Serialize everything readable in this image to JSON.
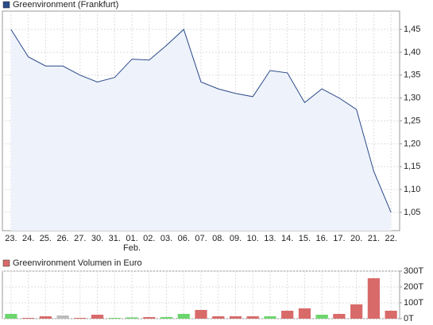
{
  "chart_data": [
    {
      "type": "area",
      "grid": true,
      "categories": [
        "23.",
        "24.",
        "25.",
        "26.",
        "27.",
        "30.",
        "31.",
        "01.",
        "02.",
        "03.",
        "06.",
        "07.",
        "08.",
        "09.",
        "10.",
        "13.",
        "14.",
        "15.",
        "16.",
        "17.",
        "20.",
        "21.",
        "22."
      ],
      "category_sublabels": [
        null,
        null,
        null,
        null,
        null,
        null,
        null,
        "Feb.",
        null,
        null,
        null,
        null,
        null,
        null,
        null,
        null,
        null,
        null,
        null,
        null,
        null,
        null,
        null
      ],
      "series": [
        {
          "name": "Greenvironment (Frankfurt)",
          "color": "#2b4a8a",
          "fill": "#eef2fa",
          "values": [
            1.45,
            1.39,
            1.37,
            1.37,
            1.35,
            1.335,
            1.345,
            1.385,
            1.383,
            1.415,
            1.45,
            1.335,
            1.32,
            1.31,
            1.303,
            1.36,
            1.355,
            1.29,
            1.32,
            1.3,
            1.275,
            1.14,
            1.05
          ]
        }
      ],
      "ylim": [
        1.01,
        1.49
      ],
      "yticks": [
        {
          "value": 1.05,
          "label": "1,05"
        },
        {
          "value": 1.1,
          "label": "1,10"
        },
        {
          "value": 1.15,
          "label": "1,15"
        },
        {
          "value": 1.2,
          "label": "1,20"
        },
        {
          "value": 1.25,
          "label": "1,25"
        },
        {
          "value": 1.3,
          "label": "1,30"
        },
        {
          "value": 1.35,
          "label": "1,35"
        },
        {
          "value": 1.4,
          "label": "1,40"
        },
        {
          "value": 1.45,
          "label": "1,45"
        }
      ]
    },
    {
      "type": "bar",
      "grid": true,
      "series": [
        {
          "name": "Greenvironment Volumen in Euro",
          "color": "#d96a6a",
          "values": [
            30,
            5,
            15,
            20,
            5,
            25,
            5,
            8,
            10,
            10,
            30,
            55,
            15,
            15,
            15,
            15,
            50,
            65,
            25,
            30,
            90,
            255,
            50
          ],
          "colors": [
            "#6dd56d",
            "#d96a6a",
            "#d96a6a",
            "#bbbbbb",
            "#d96a6a",
            "#d96a6a",
            "#6dd56d",
            "#6dd56d",
            "#d96a6a",
            "#6dd56d",
            "#6dd56d",
            "#d96a6a",
            "#d96a6a",
            "#d96a6a",
            "#d96a6a",
            "#6dd56d",
            "#d96a6a",
            "#d96a6a",
            "#6dd56d",
            "#d96a6a",
            "#d96a6a",
            "#d96a6a",
            "#d96a6a"
          ]
        }
      ],
      "ylim": [
        0,
        300
      ],
      "yticks": [
        {
          "value": 0,
          "label": "0T"
        },
        {
          "value": 100,
          "label": "100T"
        },
        {
          "value": 200,
          "label": "200T"
        },
        {
          "value": 300,
          "label": "300T"
        }
      ]
    }
  ]
}
